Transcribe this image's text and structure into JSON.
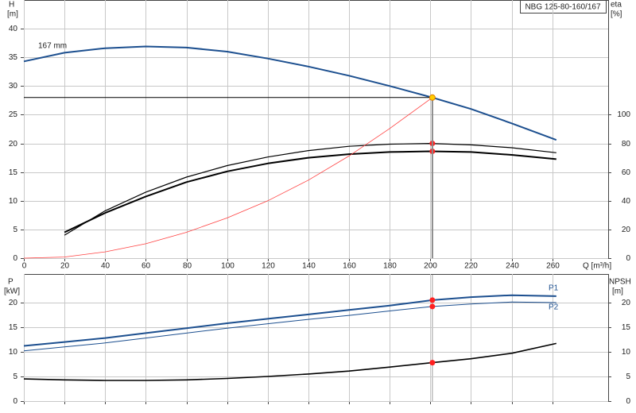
{
  "chart_data": [
    {
      "type": "line",
      "title": "NBG 125-80-160/167",
      "ylabel": "H",
      "yunit": "[m]",
      "y2label": "eta",
      "y2unit": "[%]",
      "xlabel": "Q [m³/h]",
      "xlim": [
        0,
        287.5
      ],
      "xticks": [
        0,
        20,
        40,
        60,
        80,
        100,
        120,
        140,
        160,
        180,
        200,
        220,
        240,
        260
      ],
      "ylim": [
        0,
        45
      ],
      "yticks": [
        0,
        5,
        10,
        15,
        20,
        25,
        30,
        35,
        40
      ],
      "y2lim": [
        0,
        180
      ],
      "y2ticks": [
        0,
        20,
        40,
        60,
        80,
        100
      ],
      "grid": true,
      "series": [
        {
          "name": "167 mm",
          "color": "#1c4f8f",
          "width": 2,
          "x": [
            0,
            20,
            40,
            60,
            80,
            100,
            120,
            140,
            160,
            180,
            200,
            220,
            240,
            262
          ],
          "values": [
            34.3,
            35.8,
            36.6,
            36.9,
            36.7,
            36.0,
            34.8,
            33.4,
            31.8,
            30.0,
            28.1,
            26.0,
            23.5,
            20.6
          ]
        },
        {
          "color": "#000000",
          "width": 1.2,
          "axis": "y2",
          "x": [
            20,
            40,
            60,
            80,
            100,
            120,
            140,
            160,
            180,
            200,
            220,
            240,
            262
          ],
          "values": [
            16,
            33,
            46,
            56.5,
            64.5,
            70.5,
            75,
            78,
            79.5,
            80,
            79,
            77,
            73.5
          ]
        },
        {
          "color": "#000000",
          "width": 2,
          "axis": "y2",
          "x": [
            20,
            40,
            60,
            80,
            100,
            120,
            140,
            160,
            180,
            200,
            220,
            240,
            262
          ],
          "values": [
            18,
            31.5,
            43,
            53,
            60.5,
            66,
            70,
            72.5,
            74,
            74.5,
            74,
            72,
            69
          ]
        },
        {
          "color": "#ff4040",
          "width": 0.8,
          "x": [
            0,
            20,
            40,
            60,
            80,
            100,
            120,
            140,
            160,
            180,
            201
          ],
          "values": [
            0,
            0.2,
            1.1,
            2.5,
            4.5,
            7,
            10,
            13.6,
            17.8,
            22.6,
            28
          ]
        },
        {
          "color": "#ff2020",
          "marker": true,
          "axis": "y2",
          "x": [
            201,
            201
          ],
          "values": [
            80,
            74.5
          ]
        },
        {
          "color": "#ffcc00",
          "marker": true,
          "guide": true,
          "x": [
            201
          ],
          "values": [
            28
          ]
        }
      ]
    },
    {
      "type": "line",
      "ylabel": "P",
      "yunit": "[kW]",
      "y2label": "NPSH",
      "y2unit": "[m]",
      "xlim": [
        0,
        287.5
      ],
      "ylim": [
        0,
        25.8
      ],
      "yticks": [
        0,
        5,
        10,
        15,
        20
      ],
      "y2lim": [
        0,
        25.8
      ],
      "y2ticks": [
        0,
        5,
        10,
        15,
        20
      ],
      "grid": true,
      "series": [
        {
          "name": "P1",
          "color": "#1c4f8f",
          "width": 2,
          "x": [
            0,
            20,
            40,
            60,
            80,
            100,
            120,
            140,
            160,
            180,
            201,
            220,
            240,
            262
          ],
          "values": [
            11.2,
            12,
            12.8,
            13.8,
            14.8,
            15.8,
            16.7,
            17.6,
            18.5,
            19.4,
            20.5,
            21.1,
            21.5,
            21.3
          ]
        },
        {
          "name": "P2",
          "color": "#1c4f8f",
          "width": 1,
          "x": [
            0,
            20,
            40,
            60,
            80,
            100,
            120,
            140,
            160,
            180,
            201,
            220,
            240,
            262
          ],
          "values": [
            10.2,
            11,
            11.8,
            12.8,
            13.8,
            14.8,
            15.7,
            16.6,
            17.4,
            18.3,
            19.2,
            19.7,
            20.1,
            20
          ]
        },
        {
          "color": "#000000",
          "width": 1.6,
          "axis": "y2",
          "x": [
            0,
            20,
            40,
            60,
            80,
            100,
            120,
            140,
            160,
            180,
            201,
            220,
            240,
            262
          ],
          "values": [
            4.5,
            4.3,
            4.2,
            4.2,
            4.3,
            4.6,
            5.0,
            5.5,
            6.1,
            6.9,
            7.8,
            8.6,
            9.7,
            11.7
          ]
        },
        {
          "color": "#ff2020",
          "marker": true,
          "x": [
            201,
            201
          ],
          "values": [
            20.5,
            19.2
          ]
        },
        {
          "color": "#ff2020",
          "marker": true,
          "axis": "y2",
          "x": [
            201
          ],
          "values": [
            7.8
          ]
        }
      ]
    }
  ]
}
